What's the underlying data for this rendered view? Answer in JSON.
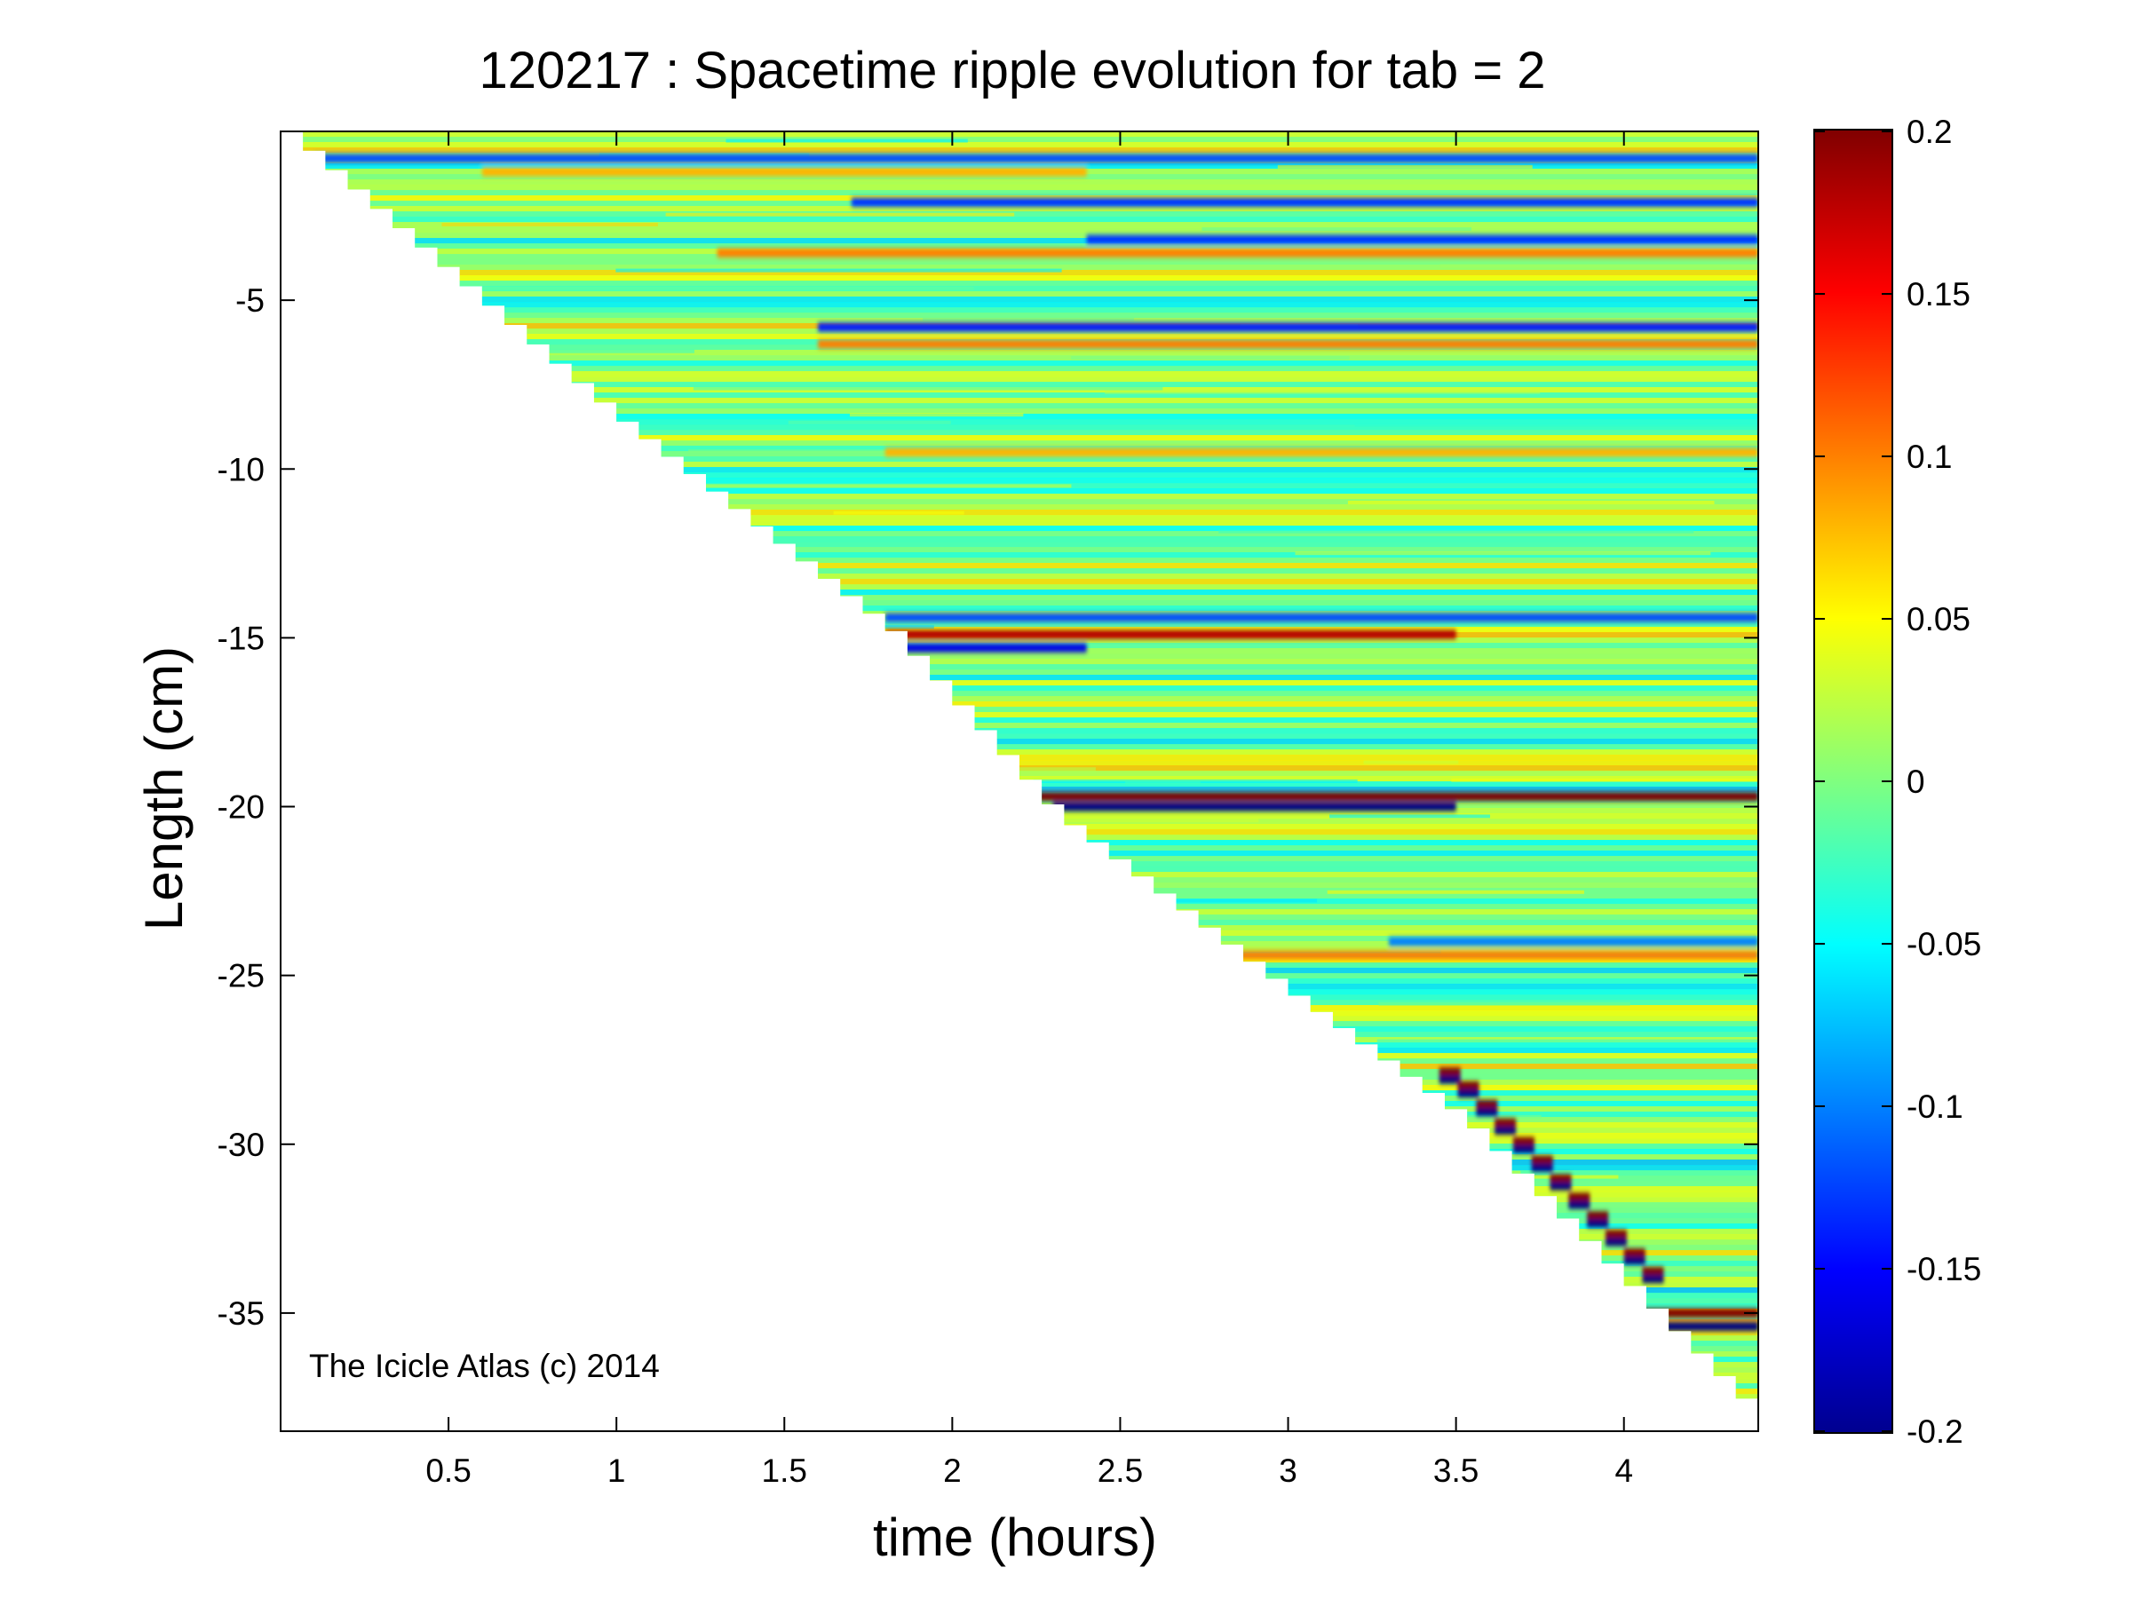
{
  "chart_data": {
    "type": "heatmap",
    "title": "120217 : Spacetime ripple evolution for tab = 2",
    "xlabel": "time (hours)",
    "ylabel": "Length (cm)",
    "xlim": [
      0.0,
      4.4
    ],
    "ylim": [
      -38.5,
      0.0
    ],
    "xticks": [
      0.5,
      1,
      1.5,
      2,
      2.5,
      3,
      3.5,
      4
    ],
    "xtick_labels": [
      "0.5",
      "1",
      "1.5",
      "2",
      "2.5",
      "3",
      "3.5",
      "4"
    ],
    "yticks": [
      -5,
      -10,
      -15,
      -20,
      -25,
      -30,
      -35
    ],
    "ytick_labels": [
      "-5",
      "-10",
      "-15",
      "-20",
      "-25",
      "-30",
      "-35"
    ],
    "colormap": "jet",
    "clim": [
      -0.2,
      0.2
    ],
    "colorbar_ticks": [
      0.2,
      0.15,
      0.1,
      0.05,
      0,
      -0.05,
      -0.1,
      -0.15,
      -0.2
    ],
    "colorbar_tick_labels": [
      "0.2",
      "0.15",
      "0.1",
      "0.05",
      "0",
      "-0.05",
      "-0.1",
      "-0.15",
      "-0.2"
    ],
    "grid": false,
    "annotation": "The Icicle Atlas (c) 2014",
    "growth_front": [
      [
        0.0,
        0.0
      ],
      [
        1.0,
        -8.6
      ],
      [
        1.8,
        -14.8
      ],
      [
        2.3,
        -20.3
      ],
      [
        3.0,
        -25.6
      ],
      [
        3.5,
        -29.2
      ],
      [
        4.4,
        -38.2
      ]
    ],
    "ripple_features": [
      {
        "y": -0.8,
        "t_start": 0.1,
        "t_end": 4.4,
        "sign": -1,
        "amplitude": 0.12
      },
      {
        "y": -1.2,
        "t_start": 0.6,
        "t_end": 2.4,
        "sign": 1,
        "amplitude": 0.08
      },
      {
        "y": -2.1,
        "t_start": 1.7,
        "t_end": 4.4,
        "sign": -1,
        "amplitude": 0.13
      },
      {
        "y": -3.2,
        "t_start": 2.4,
        "t_end": 4.4,
        "sign": -1,
        "amplitude": 0.13
      },
      {
        "y": -3.6,
        "t_start": 1.3,
        "t_end": 4.4,
        "sign": 1,
        "amplitude": 0.1
      },
      {
        "y": -5.8,
        "t_start": 1.6,
        "t_end": 4.4,
        "sign": -1,
        "amplitude": 0.14
      },
      {
        "y": -6.3,
        "t_start": 1.6,
        "t_end": 4.4,
        "sign": 1,
        "amplitude": 0.1
      },
      {
        "y": -9.5,
        "t_start": 1.8,
        "t_end": 4.4,
        "sign": 1,
        "amplitude": 0.08
      },
      {
        "y": -14.4,
        "t_start": 1.8,
        "t_end": 4.4,
        "sign": -1,
        "amplitude": 0.12
      },
      {
        "y": -14.9,
        "t_start": 1.8,
        "t_end": 3.5,
        "sign": 1,
        "amplitude": 0.18
      },
      {
        "y": -15.3,
        "t_start": 1.8,
        "t_end": 2.4,
        "sign": -1,
        "amplitude": 0.16
      },
      {
        "y": -19.7,
        "t_start": 2.2,
        "t_end": 4.4,
        "sign": 1,
        "amplitude": 0.2
      },
      {
        "y": -20.0,
        "t_start": 2.3,
        "t_end": 3.5,
        "sign": -1,
        "amplitude": 0.2
      },
      {
        "y": -24.0,
        "t_start": 3.3,
        "t_end": 4.4,
        "sign": -1,
        "amplitude": 0.1
      },
      {
        "y": -24.4,
        "t_start": 2.6,
        "t_end": 4.4,
        "sign": 1,
        "amplitude": 0.1
      },
      {
        "y": -35.0,
        "t_start": 4.05,
        "t_end": 4.4,
        "sign": 1,
        "amplitude": 0.2
      },
      {
        "y": -35.4,
        "t_start": 4.05,
        "t_end": 4.4,
        "sign": -1,
        "amplitude": 0.2
      }
    ]
  }
}
